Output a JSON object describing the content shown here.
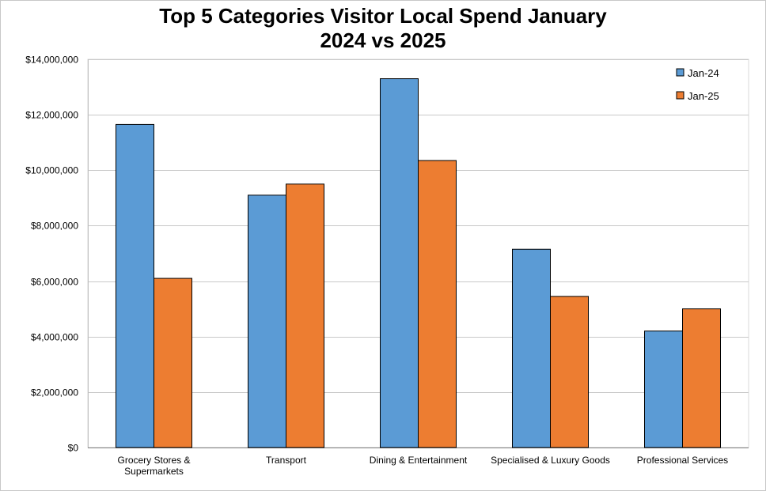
{
  "chart_data": {
    "type": "bar",
    "title_lines": [
      "Top 5 Categories Visitor Local Spend January",
      "2024 vs 2025"
    ],
    "xlabel": "",
    "ylabel": "",
    "categories": [
      [
        "Grocery Stores &",
        "Supermarkets"
      ],
      [
        "Transport"
      ],
      [
        "Dining & Entertainment"
      ],
      [
        "Specialised & Luxury Goods"
      ],
      [
        "Professional Services"
      ]
    ],
    "series": [
      {
        "name": "Jan-24",
        "color": "#5b9bd5",
        "values": [
          11650000,
          9100000,
          13300000,
          7150000,
          4200000
        ]
      },
      {
        "name": "Jan-25",
        "color": "#ed7d31",
        "values": [
          6100000,
          9500000,
          10350000,
          5450000,
          5000000
        ]
      }
    ],
    "ylim": [
      0,
      14000000
    ],
    "yticks": [
      0,
      2000000,
      4000000,
      6000000,
      8000000,
      10000000,
      12000000,
      14000000
    ],
    "ytick_labels": [
      "$0",
      "$2,000,000",
      "$4,000,000",
      "$6,000,000",
      "$8,000,000",
      "$10,000,000",
      "$12,000,000",
      "$14,000,000"
    ],
    "grid": true,
    "legend_position": "top-right"
  }
}
